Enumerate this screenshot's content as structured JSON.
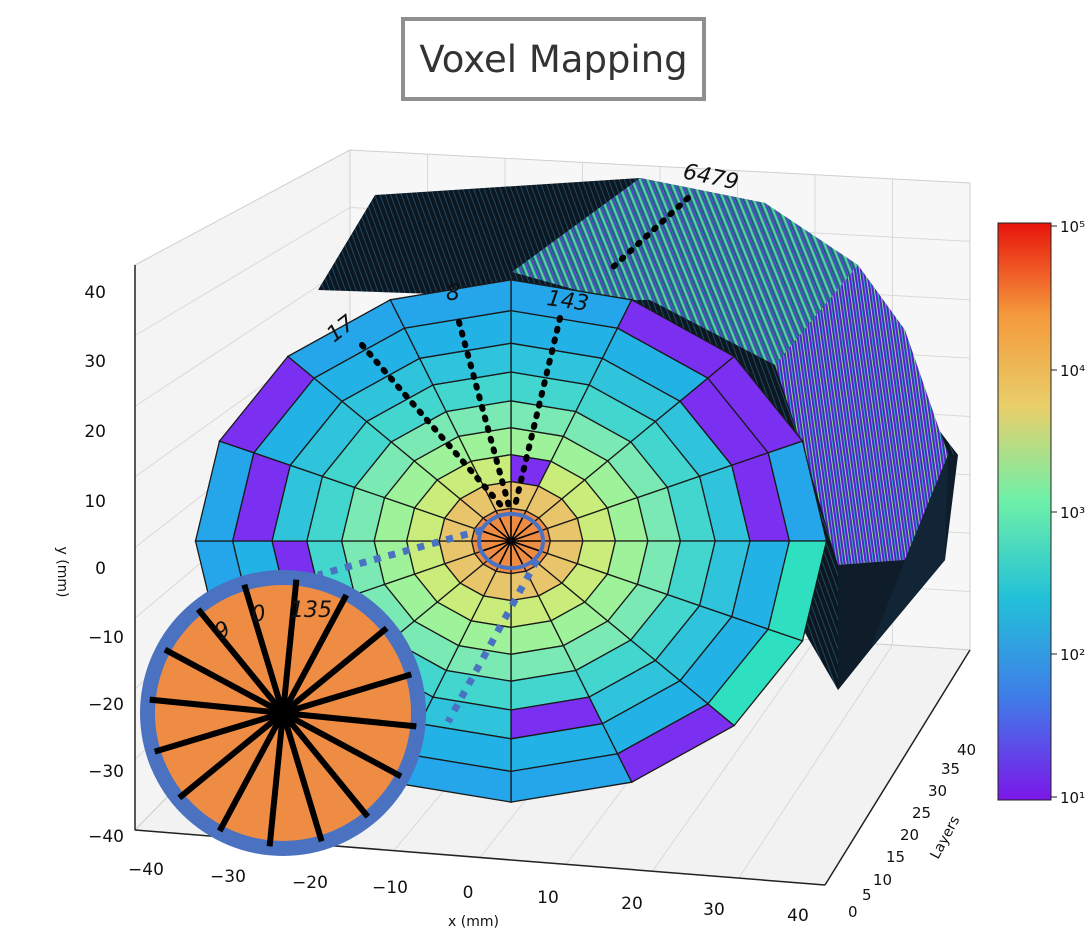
{
  "title": "Voxel Mapping",
  "axes": {
    "y_label": "y (mm)",
    "x_label": "x (mm)",
    "z_label": "Layers",
    "y_ticks": [
      "40",
      "30",
      "20",
      "10",
      "0",
      "−10",
      "−20",
      "−30",
      "−40"
    ],
    "x_ticks": [
      "−40",
      "−30",
      "−20",
      "−10",
      "0",
      "10",
      "20",
      "30",
      "40"
    ],
    "z_ticks": [
      "0",
      "5",
      "10",
      "15",
      "20",
      "25",
      "30",
      "35",
      "40"
    ]
  },
  "annotations": {
    "top": "6479",
    "left": "17",
    "middle": "8",
    "right": "143",
    "inset_a": "9",
    "inset_b": "0",
    "inset_c": "135"
  },
  "colorbar": {
    "colormap": "rainbow / turbo",
    "tick_labels": [
      "10⁵",
      "10⁴",
      "10³",
      "10²",
      "10¹"
    ],
    "colors": [
      "#e8140c",
      "#f59a3c",
      "#e8cf6a",
      "#6ff0a8",
      "#22c1d8",
      "#3f7ee8",
      "#7b17e8"
    ]
  },
  "colors": {
    "inset_ring": "#4a72c0",
    "inset_fill": "#ef8c44",
    "spoke": "#000000"
  }
}
